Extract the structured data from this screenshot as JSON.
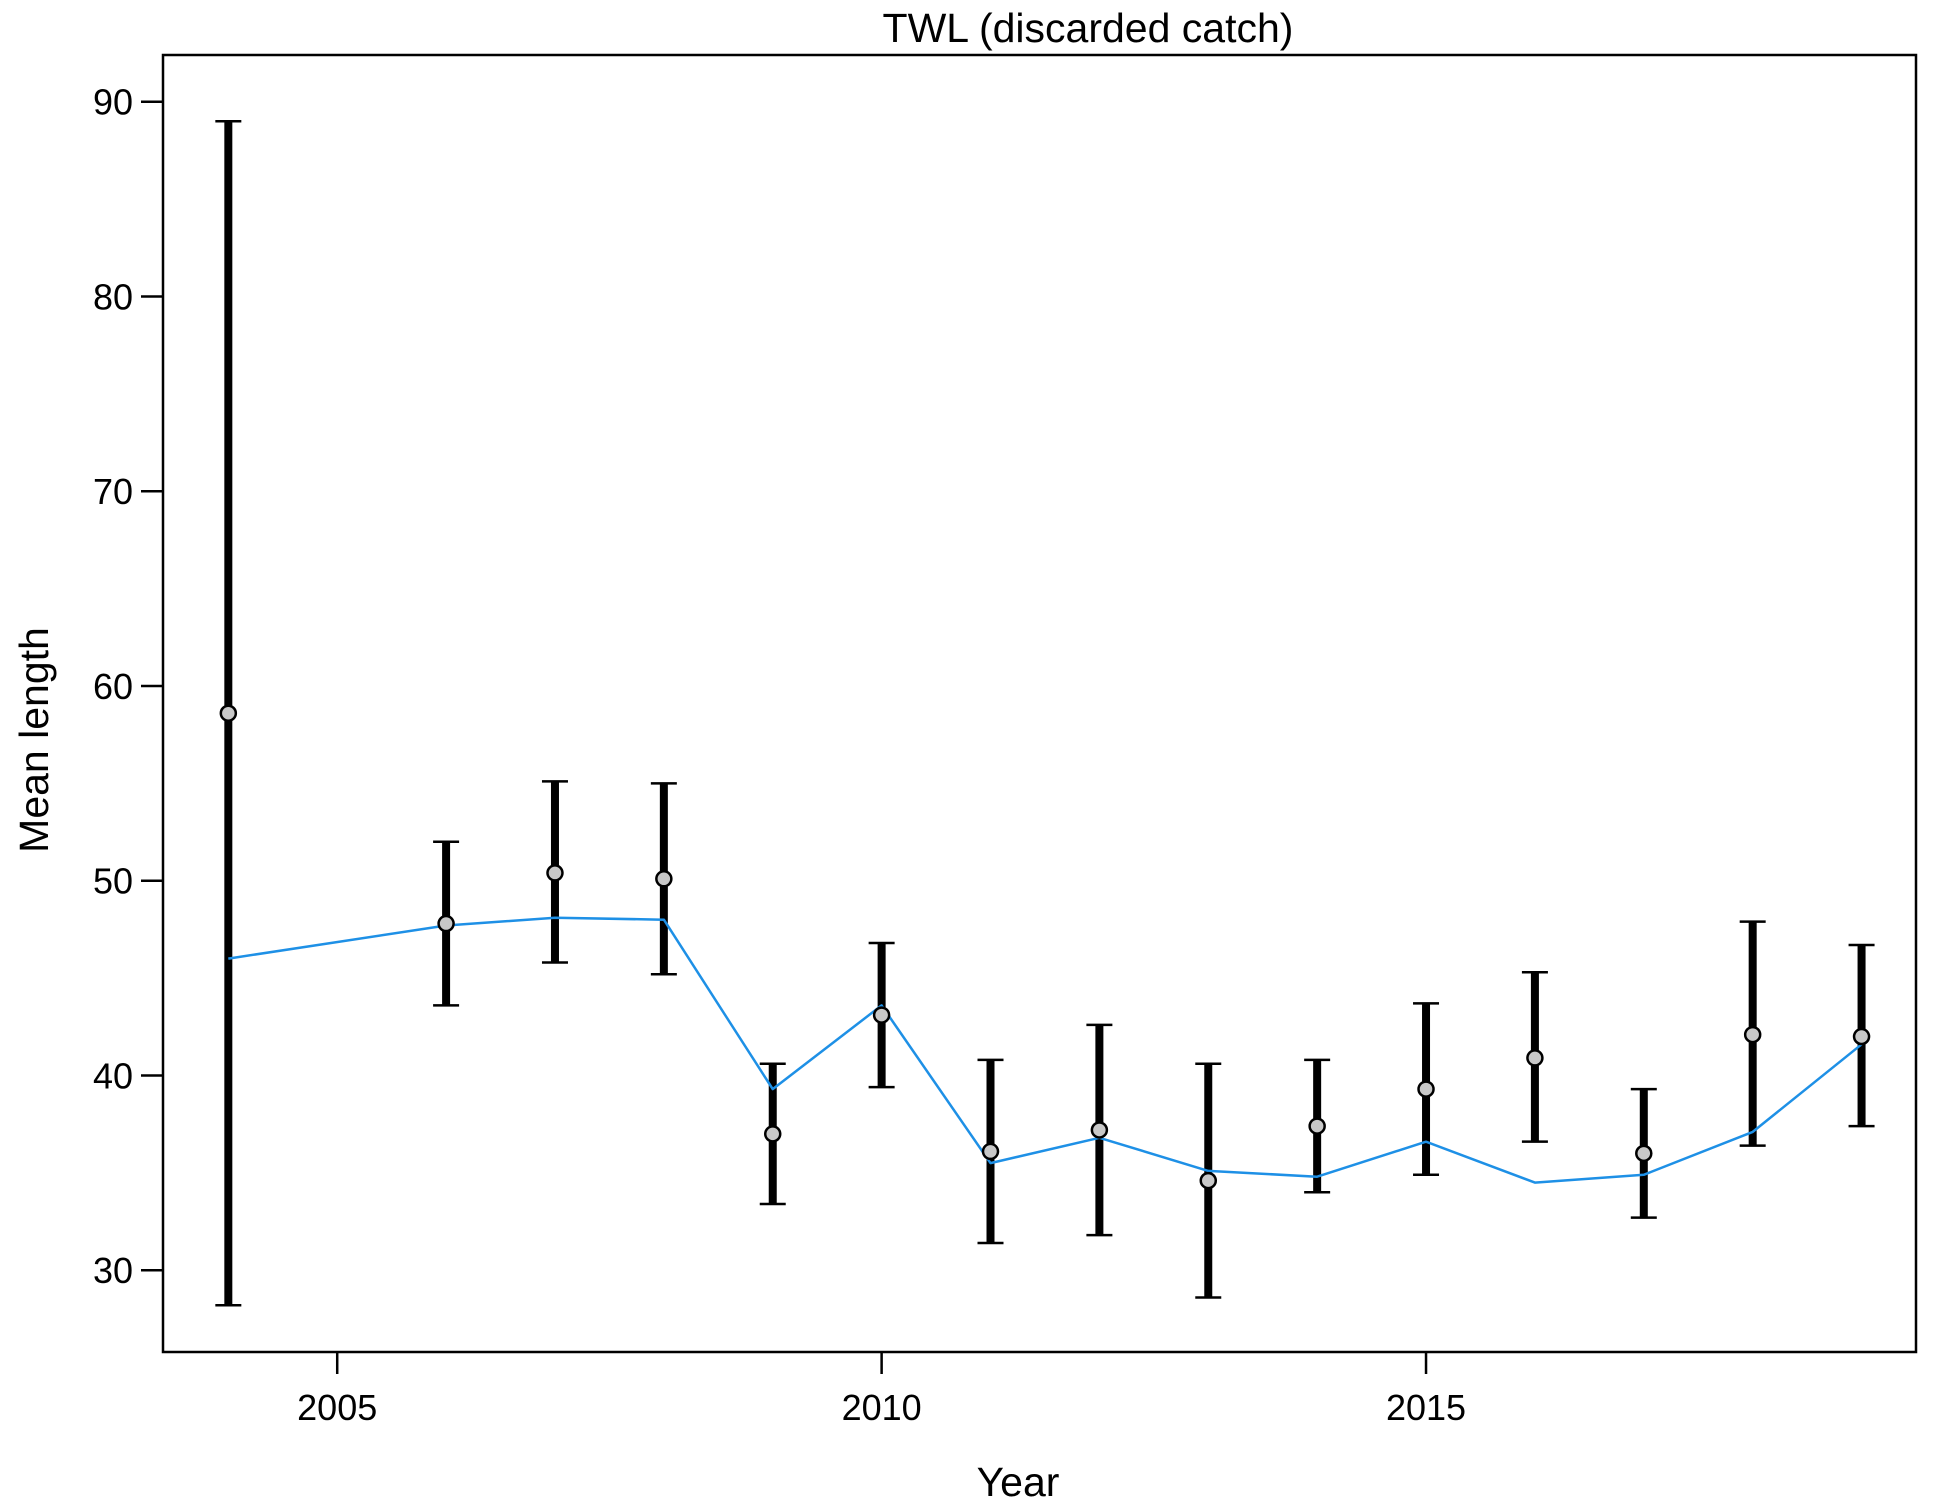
{
  "chart_data": {
    "type": "line",
    "title": "TWL (discarded catch)",
    "xlabel": "Year",
    "ylabel": "Mean length",
    "xlim": [
      2003.4,
      2019.5
    ],
    "ylim": [
      25.8,
      92.4
    ],
    "xticks": [
      2005,
      2010,
      2015
    ],
    "yticks": [
      30,
      40,
      50,
      60,
      70,
      80,
      90
    ],
    "grid": false,
    "legend": "none",
    "colors": {
      "fit_line": "#1e90e6",
      "observed_point_fill": "#c8c8c8",
      "error_bar": "#000000"
    },
    "observed": [
      {
        "x": 2004,
        "y": 58.6,
        "lo": 28.2,
        "hi": 89.0
      },
      {
        "x": 2006,
        "y": 47.8,
        "lo": 43.6,
        "hi": 52.0
      },
      {
        "x": 2007,
        "y": 50.4,
        "lo": 45.8,
        "hi": 55.1
      },
      {
        "x": 2008,
        "y": 50.1,
        "lo": 45.2,
        "hi": 55.0
      },
      {
        "x": 2009,
        "y": 37.0,
        "lo": 33.4,
        "hi": 40.6
      },
      {
        "x": 2010,
        "y": 43.1,
        "lo": 39.4,
        "hi": 46.8
      },
      {
        "x": 2011,
        "y": 36.1,
        "lo": 31.4,
        "hi": 40.8
      },
      {
        "x": 2012,
        "y": 37.2,
        "lo": 31.8,
        "hi": 42.6
      },
      {
        "x": 2013,
        "y": 34.6,
        "lo": 28.6,
        "hi": 40.6
      },
      {
        "x": 2014,
        "y": 37.4,
        "lo": 34.0,
        "hi": 40.8
      },
      {
        "x": 2015,
        "y": 39.3,
        "lo": 34.9,
        "hi": 43.7
      },
      {
        "x": 2016,
        "y": 40.9,
        "lo": 36.6,
        "hi": 45.3
      },
      {
        "x": 2017,
        "y": 36.0,
        "lo": 32.7,
        "hi": 39.3
      },
      {
        "x": 2018,
        "y": 42.1,
        "lo": 36.4,
        "hi": 47.9
      },
      {
        "x": 2019,
        "y": 42.0,
        "lo": 37.4,
        "hi": 46.7
      }
    ],
    "expected": [
      {
        "x": 2004,
        "y": 46.0
      },
      {
        "x": 2006,
        "y": 47.7
      },
      {
        "x": 2007,
        "y": 48.1
      },
      {
        "x": 2008,
        "y": 48.0
      },
      {
        "x": 2009,
        "y": 39.3
      },
      {
        "x": 2010,
        "y": 43.6
      },
      {
        "x": 2011,
        "y": 35.5
      },
      {
        "x": 2012,
        "y": 36.8
      },
      {
        "x": 2013,
        "y": 35.1
      },
      {
        "x": 2014,
        "y": 34.8
      },
      {
        "x": 2015,
        "y": 36.6
      },
      {
        "x": 2016,
        "y": 34.5
      },
      {
        "x": 2017,
        "y": 34.9
      },
      {
        "x": 2018,
        "y": 37.1
      },
      {
        "x": 2019,
        "y": 41.6
      }
    ]
  }
}
